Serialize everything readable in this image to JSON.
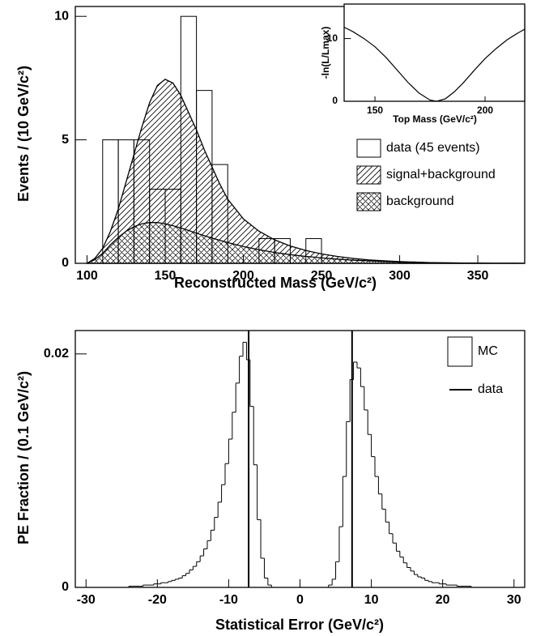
{
  "chart_data": [
    {
      "type": "histogram",
      "histtype": "bar",
      "x_label": "Reconstructed Mass (GeV/c²)",
      "y_label": "Events / (10 GeV/c²)",
      "xlim": [
        92.5,
        380
      ],
      "ylim": [
        0,
        10.4
      ],
      "xticks": [
        100,
        150,
        200,
        250,
        300,
        350
      ],
      "yticks": [
        0,
        5,
        10
      ],
      "bins": [
        110,
        120,
        130,
        140,
        150,
        160,
        170,
        180,
        190,
        200,
        210,
        220,
        230,
        240,
        250
      ],
      "series": [
        {
          "name": "data (45 events)",
          "color": "#000000",
          "values": [
            5,
            5,
            5,
            3,
            3,
            10,
            7,
            4,
            0,
            0,
            1,
            1,
            0,
            1
          ]
        }
      ],
      "x": [
        100,
        105,
        110,
        115,
        120,
        125,
        130,
        135,
        140,
        145,
        150,
        155,
        160,
        165,
        170,
        175,
        180,
        185,
        190,
        200,
        210,
        220,
        230,
        240,
        250,
        260,
        270,
        280,
        290,
        300,
        320,
        340,
        360,
        380
      ],
      "areas": [
        {
          "name": "signal+background",
          "pattern": "diagonal",
          "values": [
            0,
            0.2,
            0.6,
            1.3,
            2.2,
            3.3,
            4.4,
            5.5,
            6.5,
            7.2,
            7.45,
            7.3,
            6.8,
            6.1,
            5.4,
            4.6,
            3.9,
            3.2,
            2.6,
            1.8,
            1.3,
            0.95,
            0.7,
            0.52,
            0.38,
            0.28,
            0.2,
            0.14,
            0.1,
            0.07,
            0.03,
            0.01,
            0.005,
            0
          ]
        },
        {
          "name": "background",
          "pattern": "crosshatch",
          "values": [
            0,
            0.15,
            0.4,
            0.75,
            1.05,
            1.3,
            1.48,
            1.6,
            1.65,
            1.65,
            1.6,
            1.52,
            1.43,
            1.33,
            1.22,
            1.12,
            1.02,
            0.93,
            0.84,
            0.68,
            0.55,
            0.44,
            0.35,
            0.28,
            0.22,
            0.17,
            0.13,
            0.1,
            0.07,
            0.05,
            0.02,
            0.01,
            0,
            0
          ]
        }
      ]
    },
    {
      "type": "line",
      "x_label": "Top Mass (GeV/c²)",
      "y_label": "-ln(L/Lmax)",
      "xlim": [
        136,
        218
      ],
      "ylim": [
        0,
        15.5
      ],
      "xticks": [
        150,
        200
      ],
      "yticks": [
        0,
        10
      ],
      "color": "#000000",
      "x": [
        136,
        140,
        145,
        150,
        155,
        160,
        165,
        170,
        175,
        178,
        182,
        186,
        190,
        195,
        200,
        205,
        210,
        215,
        218
      ],
      "values": [
        11.8,
        11.1,
        10.0,
        8.7,
        7.0,
        5.0,
        3.0,
        1.3,
        0.2,
        0,
        0.4,
        1.5,
        2.9,
        4.9,
        6.8,
        8.4,
        9.8,
        10.9,
        11.5
      ]
    },
    {
      "type": "histogram",
      "histtype": "step",
      "x_label": "Statistical Error (GeV/c²)",
      "y_label": "PE Fraction / (0.1 GeV/c²)",
      "xlim": [
        -31.5,
        31.5
      ],
      "ylim": [
        0,
        0.022
      ],
      "xticks": [
        -30,
        -20,
        -10,
        0,
        10,
        20,
        30
      ],
      "yticks": [
        0,
        0.02
      ],
      "bins": [
        -30,
        -29.5,
        -29,
        -28.5,
        -28,
        -27.5,
        -27,
        -26.5,
        -26,
        -25.5,
        -25,
        -24.5,
        -24,
        -23.5,
        -23,
        -22.5,
        -22,
        -21.5,
        -21,
        -20.5,
        -20,
        -19.5,
        -19,
        -18.5,
        -18,
        -17.5,
        -17,
        -16.5,
        -16,
        -15.5,
        -15,
        -14.5,
        -14,
        -13.5,
        -13,
        -12.5,
        -12,
        -11.5,
        -11,
        -10.5,
        -10,
        -9.5,
        -9,
        -8.5,
        -8,
        -7.5,
        -7,
        -6.5,
        -6,
        -5.5,
        -5,
        -4.5,
        -4,
        -3.5,
        -3,
        -2.5,
        -2,
        -1.5,
        -1,
        -0.5,
        0,
        0.5,
        1,
        1.5,
        2,
        2.5,
        3,
        3.5,
        4,
        4.5,
        5,
        5.5,
        6,
        6.5,
        7,
        7.5,
        8,
        8.5,
        9,
        9.5,
        10,
        10.5,
        11,
        11.5,
        12,
        12.5,
        13,
        13.5,
        14,
        14.5,
        15,
        15.5,
        16,
        16.5,
        17,
        17.5,
        18,
        18.5,
        19,
        19.5,
        20,
        20.5,
        21,
        21.5,
        22,
        22.5,
        23,
        23.5,
        24,
        24.5,
        25,
        25.5,
        26,
        26.5,
        27,
        27.5,
        28,
        28.5,
        29,
        29.5,
        30
      ],
      "series": [
        {
          "name": "MC",
          "color": "#000000",
          "values": [
            0,
            0,
            0,
            0,
            0,
            0,
            0,
            0,
            0,
            0,
            0,
            0,
            0.0001,
            0.0001,
            0.0001,
            0.0001,
            0.0002,
            0.0002,
            0.0002,
            0.0003,
            0.0003,
            0.0004,
            0.0004,
            0.0005,
            0.0006,
            0.0007,
            0.0008,
            0.001,
            0.0012,
            0.0015,
            0.0018,
            0.0022,
            0.0027,
            0.0033,
            0.004,
            0.0049,
            0.006,
            0.0073,
            0.0088,
            0.0106,
            0.0127,
            0.015,
            0.0175,
            0.0198,
            0.021,
            0.0195,
            0.0155,
            0.0105,
            0.0058,
            0.0025,
            0.0008,
            0.0002,
            0,
            0,
            0,
            0,
            0,
            0,
            0,
            0,
            0,
            0,
            0,
            0,
            0,
            0,
            0,
            0,
            0.0002,
            0.0007,
            0.0022,
            0.0052,
            0.0095,
            0.0142,
            0.0178,
            0.0193,
            0.0188,
            0.0172,
            0.0152,
            0.0131,
            0.0112,
            0.0095,
            0.008,
            0.0067,
            0.0056,
            0.0046,
            0.0038,
            0.0031,
            0.0026,
            0.0021,
            0.0017,
            0.0014,
            0.0011,
            0.0009,
            0.0008,
            0.0006,
            0.0005,
            0.0004,
            0.0004,
            0.0003,
            0.0003,
            0.0002,
            0.0002,
            0.0002,
            0.0001,
            0.0001,
            0.0001,
            0.0001,
            0,
            0,
            0,
            0,
            0,
            0,
            0,
            0,
            0,
            0,
            0,
            0
          ]
        }
      ],
      "markers": {
        "name": "data",
        "color": "#000000",
        "x": [
          -7.2,
          7.3
        ]
      }
    }
  ]
}
